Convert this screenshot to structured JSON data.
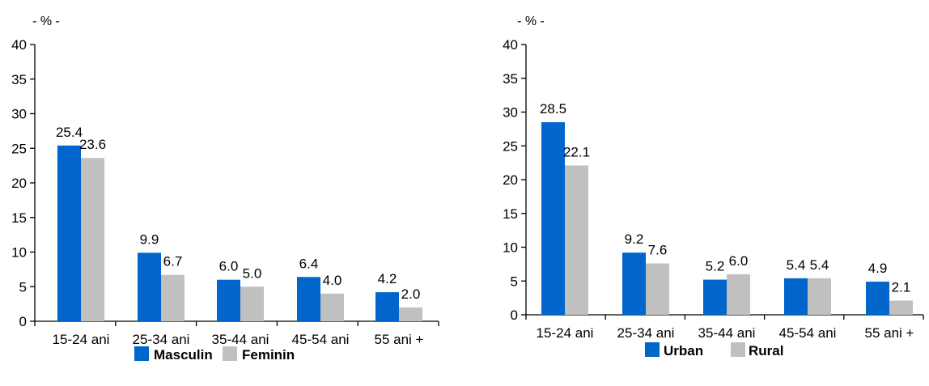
{
  "chart_data": [
    {
      "type": "bar",
      "unit_label": "- % -",
      "categories": [
        "15-24 ani",
        "25-34 ani",
        "35-44 ani",
        "45-54 ani",
        "55 ani +"
      ],
      "series": [
        {
          "name": "Masculin",
          "color": "#0066cc",
          "values": [
            25.4,
            9.9,
            6.0,
            6.4,
            4.2
          ],
          "labels": [
            "25.4",
            "9.9",
            "6.0",
            "6.4",
            "4.2"
          ]
        },
        {
          "name": "Feminin",
          "color": "#c0c0c0",
          "values": [
            23.6,
            6.7,
            5.0,
            4.0,
            2.0
          ],
          "labels": [
            "23.6",
            "6.7",
            "5.0",
            "4.0",
            "2.0"
          ]
        }
      ],
      "ylim": [
        0,
        40
      ],
      "yticks": [
        0,
        5,
        10,
        15,
        20,
        25,
        30,
        35,
        40
      ],
      "grid": false,
      "legend_position": "bottom"
    },
    {
      "type": "bar",
      "unit_label": "- % -",
      "categories": [
        "15-24 ani",
        "25-34 ani",
        "35-44 ani",
        "45-54 ani",
        "55 ani +"
      ],
      "series": [
        {
          "name": "Urban",
          "color": "#0066cc",
          "values": [
            28.5,
            9.2,
            5.2,
            5.4,
            4.9
          ],
          "labels": [
            "28.5",
            "9.2",
            "5.2",
            "5.4",
            "4.9"
          ]
        },
        {
          "name": "Rural",
          "color": "#c0c0c0",
          "values": [
            22.1,
            7.6,
            6.0,
            5.4,
            2.1
          ],
          "labels": [
            "22.1",
            "7.6",
            "6.0",
            "5.4",
            "2.1"
          ]
        }
      ],
      "ylim": [
        0,
        40
      ],
      "yticks": [
        0,
        5,
        10,
        15,
        20,
        25,
        30,
        35,
        40
      ],
      "grid": false,
      "legend_position": "bottom"
    }
  ]
}
